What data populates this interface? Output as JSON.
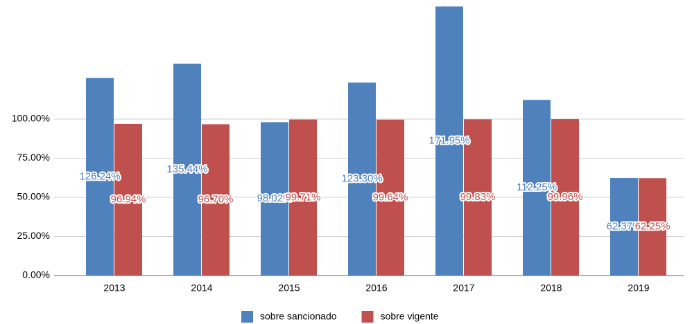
{
  "chart_data": {
    "type": "bar",
    "categories": [
      "2013",
      "2014",
      "2015",
      "2016",
      "2017",
      "2018",
      "2019"
    ],
    "series": [
      {
        "name": "sobre sancionado",
        "color": "#4f81bd",
        "values": [
          126.24,
          135.44,
          98.02,
          123.3,
          171.95,
          112.25,
          62.37
        ],
        "value_labels": [
          "126.24%",
          "135.44%",
          "98.02%",
          "123.30%",
          "171.95%",
          "112.25%",
          "62.37%"
        ]
      },
      {
        "name": "sobre vigente",
        "color": "#c0504d",
        "values": [
          96.94,
          96.7,
          99.71,
          99.64,
          99.83,
          99.96,
          62.25
        ],
        "value_labels": [
          "96.94%",
          "96.70%",
          "99.71%",
          "99.64%",
          "99.83%",
          "99.96%",
          "62.25%"
        ]
      }
    ],
    "ylim": [
      0,
      175
    ],
    "yticks": [
      {
        "value": 0,
        "label": "0.00%"
      },
      {
        "value": 25,
        "label": "25.00%"
      },
      {
        "value": 50,
        "label": "50.00%"
      },
      {
        "value": 75,
        "label": "75.00%"
      },
      {
        "value": 100,
        "label": "100.00%"
      }
    ],
    "grid": true,
    "legend": "bottom"
  }
}
